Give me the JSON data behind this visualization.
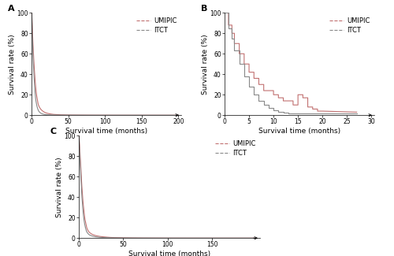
{
  "panel_A": {
    "label": "A",
    "umipic_x": [
      0,
      0.3,
      0.6,
      1,
      1.5,
      2,
      2.5,
      3,
      3.5,
      4,
      4.5,
      5,
      5.5,
      6,
      6.5,
      7,
      7.5,
      8,
      8.5,
      9,
      9.5,
      10,
      11,
      12,
      13,
      14,
      15,
      16,
      17,
      18,
      19,
      20,
      22,
      24,
      26,
      28,
      30,
      35,
      40,
      45,
      50,
      60,
      70,
      80,
      100,
      120,
      150,
      175,
      200
    ],
    "umipic_y": [
      100,
      98,
      94,
      87,
      78,
      70,
      62,
      55,
      49,
      43,
      38,
      33,
      29,
      25,
      22,
      19,
      17,
      15,
      13,
      11,
      10,
      9,
      7.5,
      6.5,
      5.5,
      4.8,
      4.2,
      3.7,
      3.2,
      2.8,
      2.5,
      2.2,
      1.8,
      1.5,
      1.2,
      1.0,
      0.8,
      0.6,
      0.4,
      0.3,
      0.2,
      0.15,
      0.1,
      0.07,
      0.04,
      0.02,
      0.01,
      0.005,
      0
    ],
    "itct_x": [
      0,
      0.3,
      0.6,
      1,
      1.5,
      2,
      2.5,
      3,
      3.5,
      4,
      4.5,
      5,
      5.5,
      6,
      6.5,
      7,
      7.5,
      8,
      8.5,
      9,
      9.5,
      10,
      11,
      12,
      13,
      14,
      15,
      16,
      17,
      18,
      20,
      22,
      25,
      30,
      35,
      40,
      50,
      60,
      80,
      100,
      120,
      150,
      175,
      200
    ],
    "itct_y": [
      100,
      96,
      89,
      80,
      70,
      60,
      51,
      43,
      36,
      30,
      25,
      21,
      17,
      14,
      12,
      10,
      8.5,
      7.2,
      6.1,
      5.2,
      4.4,
      3.8,
      2.9,
      2.3,
      1.8,
      1.5,
      1.2,
      1.0,
      0.85,
      0.7,
      0.55,
      0.43,
      0.32,
      0.22,
      0.15,
      0.1,
      0.065,
      0.04,
      0.02,
      0.01,
      0.006,
      0.003,
      0.001,
      0
    ],
    "xlim": [
      0,
      200
    ],
    "ylim": [
      0,
      100
    ],
    "xticks": [
      0,
      50,
      100,
      150,
      200
    ],
    "yticks": [
      0,
      20,
      40,
      60,
      80,
      100
    ],
    "xlabel": "Survival time (months)",
    "ylabel": "Survival rate (%)"
  },
  "panel_B": {
    "label": "B",
    "umipic_x": [
      0,
      0.8,
      0.8,
      1.5,
      1.5,
      2,
      2,
      3,
      3,
      4,
      4,
      5,
      5,
      6,
      6,
      7,
      7,
      8,
      8,
      10,
      10,
      11,
      11,
      12,
      12,
      14,
      14,
      15,
      15,
      16,
      16,
      17,
      17,
      18,
      18,
      19,
      19,
      20,
      27
    ],
    "umipic_y": [
      100,
      100,
      88,
      88,
      80,
      80,
      70,
      70,
      60,
      60,
      50,
      50,
      42,
      42,
      36,
      36,
      30,
      30,
      24,
      24,
      20,
      20,
      17,
      17,
      14,
      14,
      10,
      10,
      20,
      20,
      17,
      17,
      8,
      8,
      6,
      6,
      4,
      4,
      3
    ],
    "itct_x": [
      0,
      0.8,
      0.8,
      1.5,
      1.5,
      2,
      2,
      3,
      3,
      4,
      4,
      5,
      5,
      6,
      6,
      7,
      7,
      8,
      8,
      9,
      9,
      10,
      10,
      11,
      11,
      12,
      12,
      13,
      13,
      27
    ],
    "itct_y": [
      100,
      100,
      85,
      85,
      75,
      75,
      63,
      63,
      50,
      50,
      38,
      38,
      28,
      28,
      20,
      20,
      14,
      14,
      10,
      10,
      7,
      7,
      5,
      5,
      3.5,
      3.5,
      2.5,
      2.5,
      2,
      2
    ],
    "xlim": [
      0,
      30
    ],
    "ylim": [
      0,
      100
    ],
    "xticks": [
      0,
      5,
      10,
      15,
      20,
      25,
      30
    ],
    "yticks": [
      0,
      20,
      40,
      60,
      80,
      100
    ],
    "xlabel": "Survival time (months)",
    "ylabel": "Survival rate (%)"
  },
  "panel_C": {
    "label": "C",
    "umipic_x": [
      0,
      0.3,
      0.6,
      1,
      1.5,
      2,
      2.5,
      3,
      3.5,
      4,
      4.5,
      5,
      5.5,
      6,
      6.5,
      7,
      7.5,
      8,
      8.5,
      9,
      10,
      11,
      12,
      14,
      16,
      18,
      20,
      24,
      28,
      32,
      36,
      40,
      50,
      60,
      70,
      80,
      100,
      120,
      150,
      175,
      200
    ],
    "umipic_y": [
      100,
      98,
      95,
      89,
      81,
      73,
      65,
      57,
      50,
      44,
      38,
      33,
      29,
      25,
      21,
      18,
      16,
      14,
      12,
      10,
      8,
      6.5,
      5.5,
      4.2,
      3.3,
      2.7,
      2.2,
      1.6,
      1.2,
      0.9,
      0.65,
      0.5,
      0.3,
      0.18,
      0.11,
      0.07,
      0.03,
      0.015,
      0.007,
      0.003,
      0
    ],
    "itct_x": [
      0,
      0.3,
      0.6,
      1,
      1.5,
      2,
      2.5,
      3,
      3.5,
      4,
      4.5,
      5,
      5.5,
      6,
      6.5,
      7,
      7.5,
      8,
      8.5,
      9,
      10,
      11,
      12,
      14,
      16,
      18,
      20,
      24,
      28,
      32,
      36,
      40,
      50,
      60,
      70,
      80,
      100,
      120,
      150,
      175,
      200
    ],
    "itct_y": [
      100,
      97,
      92,
      84,
      74,
      65,
      56,
      48,
      41,
      35,
      29,
      24,
      20,
      17,
      14,
      12,
      10,
      8.5,
      7.2,
      6,
      4.8,
      3.8,
      3.1,
      2.3,
      1.8,
      1.4,
      1.1,
      0.75,
      0.55,
      0.4,
      0.28,
      0.2,
      0.12,
      0.07,
      0.04,
      0.025,
      0.01,
      0.005,
      0.002,
      0.001,
      0
    ],
    "xlim": [
      0,
      200
    ],
    "ylim": [
      0,
      100
    ],
    "xticks": [
      0,
      50,
      100,
      150
    ],
    "yticks": [
      0,
      20,
      40,
      60,
      80,
      100
    ],
    "xlabel": "Survival time (months)",
    "ylabel": "Survival rate (%)"
  },
  "umipic_color": "#c17070",
  "itct_color": "#888888",
  "line_width": 0.8,
  "font_size_label": 6.5,
  "font_size_tick": 5.5,
  "font_size_legend": 6,
  "font_size_panel": 8
}
